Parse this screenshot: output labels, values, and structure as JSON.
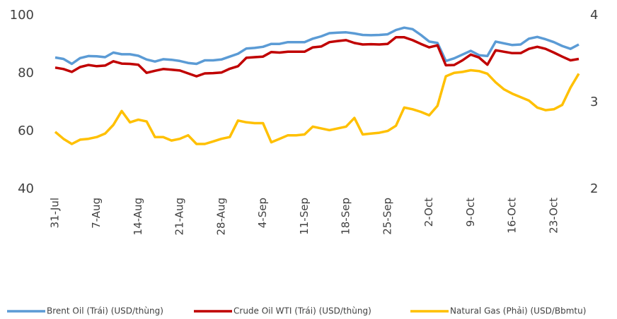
{
  "chart_data": {
    "type": "line",
    "categories": [
      "31-Jul",
      null,
      null,
      null,
      null,
      "7-Aug",
      null,
      null,
      null,
      null,
      "14-Aug",
      null,
      null,
      null,
      null,
      "21-Aug",
      null,
      null,
      null,
      null,
      "28-Aug",
      null,
      null,
      null,
      null,
      "4-Sep",
      null,
      null,
      null,
      null,
      "11-Sep",
      null,
      null,
      null,
      null,
      "18-Sep",
      null,
      null,
      null,
      null,
      "25-Sep",
      null,
      null,
      null,
      null,
      "2-Oct",
      null,
      null,
      null,
      null,
      "9-Oct",
      null,
      null,
      null,
      null,
      "16-Oct",
      null,
      null,
      null,
      null,
      "23-Oct",
      null,
      null,
      null
    ],
    "ylim": [
      40,
      100
    ],
    "yticks": [
      40,
      60,
      80,
      100
    ],
    "y2lim": [
      2,
      4
    ],
    "y2ticks": [
      2,
      3,
      4
    ],
    "grid": false,
    "legend": "bottom",
    "series": [
      {
        "name": "Brent Oil (Trái) (USD/thùng)",
        "color": "#5b9bd5",
        "values": [
          85.5,
          85,
          83.3,
          85.3,
          86,
          85.9,
          85.6,
          87.2,
          86.6,
          86.6,
          86.1,
          84.8,
          84.1,
          84.9,
          84.7,
          84.3,
          83.6,
          83.3,
          84.5,
          84.5,
          84.8,
          85.8,
          86.8,
          88.6,
          88.8,
          89.2,
          90.2,
          90.2,
          90.8,
          90.8,
          90.8,
          92,
          92.8,
          93.9,
          94.1,
          94.2,
          93.8,
          93.3,
          93.2,
          93.3,
          93.5,
          95,
          95.8,
          95.3,
          93.3,
          91,
          90.5,
          84.3,
          85.2,
          86.5,
          87.8,
          86.3,
          86,
          91,
          90.4,
          89.8,
          90,
          92,
          92.6,
          91.8,
          90.8,
          89.5,
          88.5,
          90
        ]
      },
      {
        "name": "Crude Oil WTI (Trái) (USD/thùng)",
        "color": "#c00000",
        "values": [
          82,
          81.5,
          80.5,
          82.2,
          82.9,
          82.5,
          82.7,
          84.2,
          83.4,
          83.3,
          83,
          80.2,
          80.9,
          81.5,
          81.3,
          81,
          80,
          79,
          80,
          80.1,
          80.3,
          81.6,
          82.5,
          85.4,
          85.6,
          85.8,
          87.4,
          87.2,
          87.5,
          87.5,
          87.5,
          89,
          89.3,
          90.8,
          91.2,
          91.5,
          90.5,
          90,
          90.1,
          90,
          90.2,
          92.5,
          92.5,
          91.5,
          90.2,
          89,
          89.7,
          82.8,
          82.9,
          84.5,
          86.5,
          85.5,
          83,
          88,
          87.5,
          87,
          87,
          88.5,
          89.2,
          88.5,
          87.2,
          85.8,
          84.5,
          85
        ]
      },
      {
        "name": "Natural Gas (Phải) (USD/Bbmtu)",
        "color": "#ffc000",
        "axis": "y2",
        "values": [
          2.66,
          2.58,
          2.52,
          2.57,
          2.58,
          2.6,
          2.64,
          2.74,
          2.9,
          2.77,
          2.8,
          2.78,
          2.6,
          2.6,
          2.56,
          2.58,
          2.62,
          2.52,
          2.52,
          2.55,
          2.58,
          2.6,
          2.79,
          2.77,
          2.76,
          2.76,
          2.54,
          2.58,
          2.62,
          2.62,
          2.63,
          2.72,
          2.7,
          2.68,
          2.7,
          2.72,
          2.82,
          2.63,
          2.64,
          2.65,
          2.67,
          2.73,
          2.94,
          2.92,
          2.89,
          2.85,
          2.96,
          3.3,
          3.34,
          3.35,
          3.37,
          3.36,
          3.33,
          3.23,
          3.15,
          3.1,
          3.06,
          3.02,
          2.94,
          2.91,
          2.92,
          2.97,
          3.17,
          3.33
        ]
      }
    ]
  }
}
